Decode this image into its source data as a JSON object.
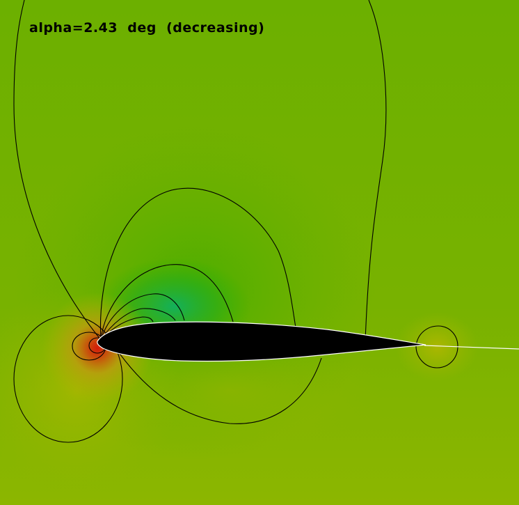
{
  "caption": "alpha=2.43  deg  (decreasing)",
  "colors": {
    "background": "#7fb400",
    "suction_peak": "#10a850",
    "stagnation": "#d41a0a",
    "pressure_halo": "#c8b800",
    "airfoil": "#000000",
    "contour_line": "#000000",
    "wake_line": "#ffffff"
  }
}
